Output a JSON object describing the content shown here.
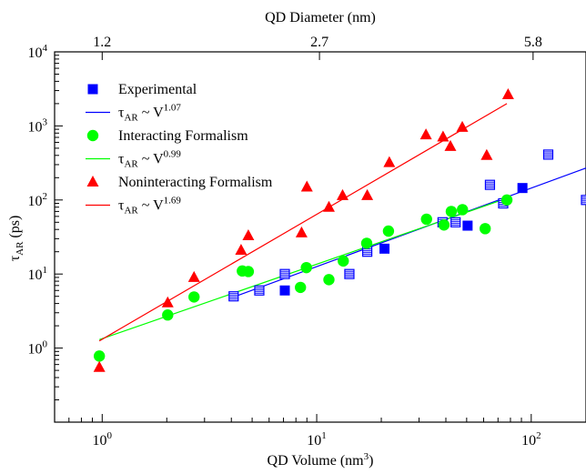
{
  "chart_data": {
    "type": "scatter",
    "title": "",
    "xlabel": "QD Volume (nm",
    "xlabel_sup": "3",
    "xlabel_close": ")",
    "ylabel_base": "τ",
    "ylabel_sub": "AR",
    "ylabel_unit": " (ps)",
    "top_axis_label": "QD Diameter (nm)",
    "x_scale": "log",
    "y_scale": "log",
    "xlim": [
      0.6,
      180
    ],
    "ylim": [
      0.1,
      10000
    ],
    "x_ticks": [
      {
        "value": 1,
        "label": "10",
        "sup": "0"
      },
      {
        "value": 10,
        "label": "10",
        "sup": "1"
      },
      {
        "value": 100,
        "label": "10",
        "sup": "2"
      }
    ],
    "y_ticks": [
      {
        "value": 1,
        "label": "10",
        "sup": "0"
      },
      {
        "value": 10,
        "label": "10",
        "sup": "1"
      },
      {
        "value": 100,
        "label": "10",
        "sup": "2"
      },
      {
        "value": 1000,
        "label": "10",
        "sup": "3"
      },
      {
        "value": 10000,
        "label": "10",
        "sup": "4"
      }
    ],
    "top_ticks": [
      {
        "value": 1.0,
        "label": "1.2"
      },
      {
        "value": 10.3,
        "label": "2.7"
      },
      {
        "value": 102,
        "label": "5.8"
      }
    ],
    "grid": false,
    "legend_position": "top-left",
    "colors": {
      "experimental": "#0000ff",
      "interacting": "#00ff00",
      "noninteracting": "#ff0000"
    },
    "series": [
      {
        "name": "Experimental",
        "kind": "scatter",
        "marker": "square",
        "color": "#0000ff",
        "x": [
          7.1,
          20.7,
          50.5,
          91
        ],
        "y": [
          6.0,
          22,
          45,
          145
        ]
      },
      {
        "name": "Experimental (striped)",
        "kind": "scatter",
        "marker": "square-striped",
        "color": "#0000ff",
        "x": [
          4.1,
          5.4,
          7.1,
          14.2,
          17.2,
          38.6,
          44.4,
          64.2,
          74,
          120,
          180
        ],
        "y": [
          5.0,
          6.0,
          10,
          10,
          20,
          50,
          50,
          160,
          90,
          410,
          100
        ]
      },
      {
        "name": "Interacting Formalism",
        "kind": "scatter",
        "marker": "circle",
        "color": "#00ff00",
        "x": [
          0.97,
          2.02,
          2.68,
          4.5,
          4.8,
          8.4,
          8.95,
          11.4,
          13.3,
          17.1,
          21.6,
          32.5,
          39.2,
          42.4,
          47.8,
          61,
          77
        ],
        "y": [
          0.78,
          2.8,
          4.9,
          11,
          10.8,
          6.6,
          12.2,
          8.4,
          15,
          26,
          38,
          55,
          46,
          70,
          74,
          41,
          100
        ]
      },
      {
        "name": "Noninteracting Formalism",
        "kind": "scatter",
        "marker": "triangle",
        "color": "#ff0000",
        "x": [
          0.97,
          2.02,
          2.68,
          4.44,
          4.8,
          8.5,
          9.0,
          11.4,
          13.2,
          17.2,
          21.8,
          32.3,
          38.8,
          42,
          47.7,
          62,
          78
        ],
        "y": [
          0.55,
          4.1,
          9.0,
          21,
          33,
          36,
          150,
          80,
          115,
          115,
          320,
          760,
          710,
          530,
          960,
          400,
          2650
        ]
      },
      {
        "name": "τ",
        "name_sub": "AR",
        "name_suffix": " ~ V",
        "name_sup": "1.07",
        "kind": "line",
        "color": "#0000ff",
        "x": [
          4.1,
          180
        ],
        "y": [
          4.9,
          270
        ]
      },
      {
        "name": "τ",
        "name_sub": "AR",
        "name_suffix": " ~ V",
        "name_sup": "0.99",
        "kind": "line",
        "color": "#00ff00",
        "x": [
          0.97,
          73
        ],
        "y": [
          1.3,
          100
        ]
      },
      {
        "name": "τ",
        "name_sub": "AR",
        "name_suffix": " ~ V",
        "name_sup": "1.69",
        "kind": "line",
        "color": "#ff0000",
        "x": [
          0.97,
          77
        ],
        "y": [
          1.25,
          2000
        ]
      }
    ],
    "legend": [
      {
        "kind": "square",
        "color": "#0000ff",
        "text": "Experimental"
      },
      {
        "kind": "line",
        "color": "#0000ff",
        "base": "τ",
        "sub": "AR",
        "mid": " ~ V",
        "sup": "1.07"
      },
      {
        "kind": "circle",
        "color": "#00ff00",
        "text": "Interacting Formalism"
      },
      {
        "kind": "line",
        "color": "#00ff00",
        "base": "τ",
        "sub": "AR",
        "mid": " ~ V",
        "sup": "0.99"
      },
      {
        "kind": "triangle",
        "color": "#ff0000",
        "text": "Noninteracting Formalism"
      },
      {
        "kind": "line",
        "color": "#ff0000",
        "base": "τ",
        "sub": "AR",
        "mid": " ~ V",
        "sup": "1.69"
      }
    ]
  }
}
